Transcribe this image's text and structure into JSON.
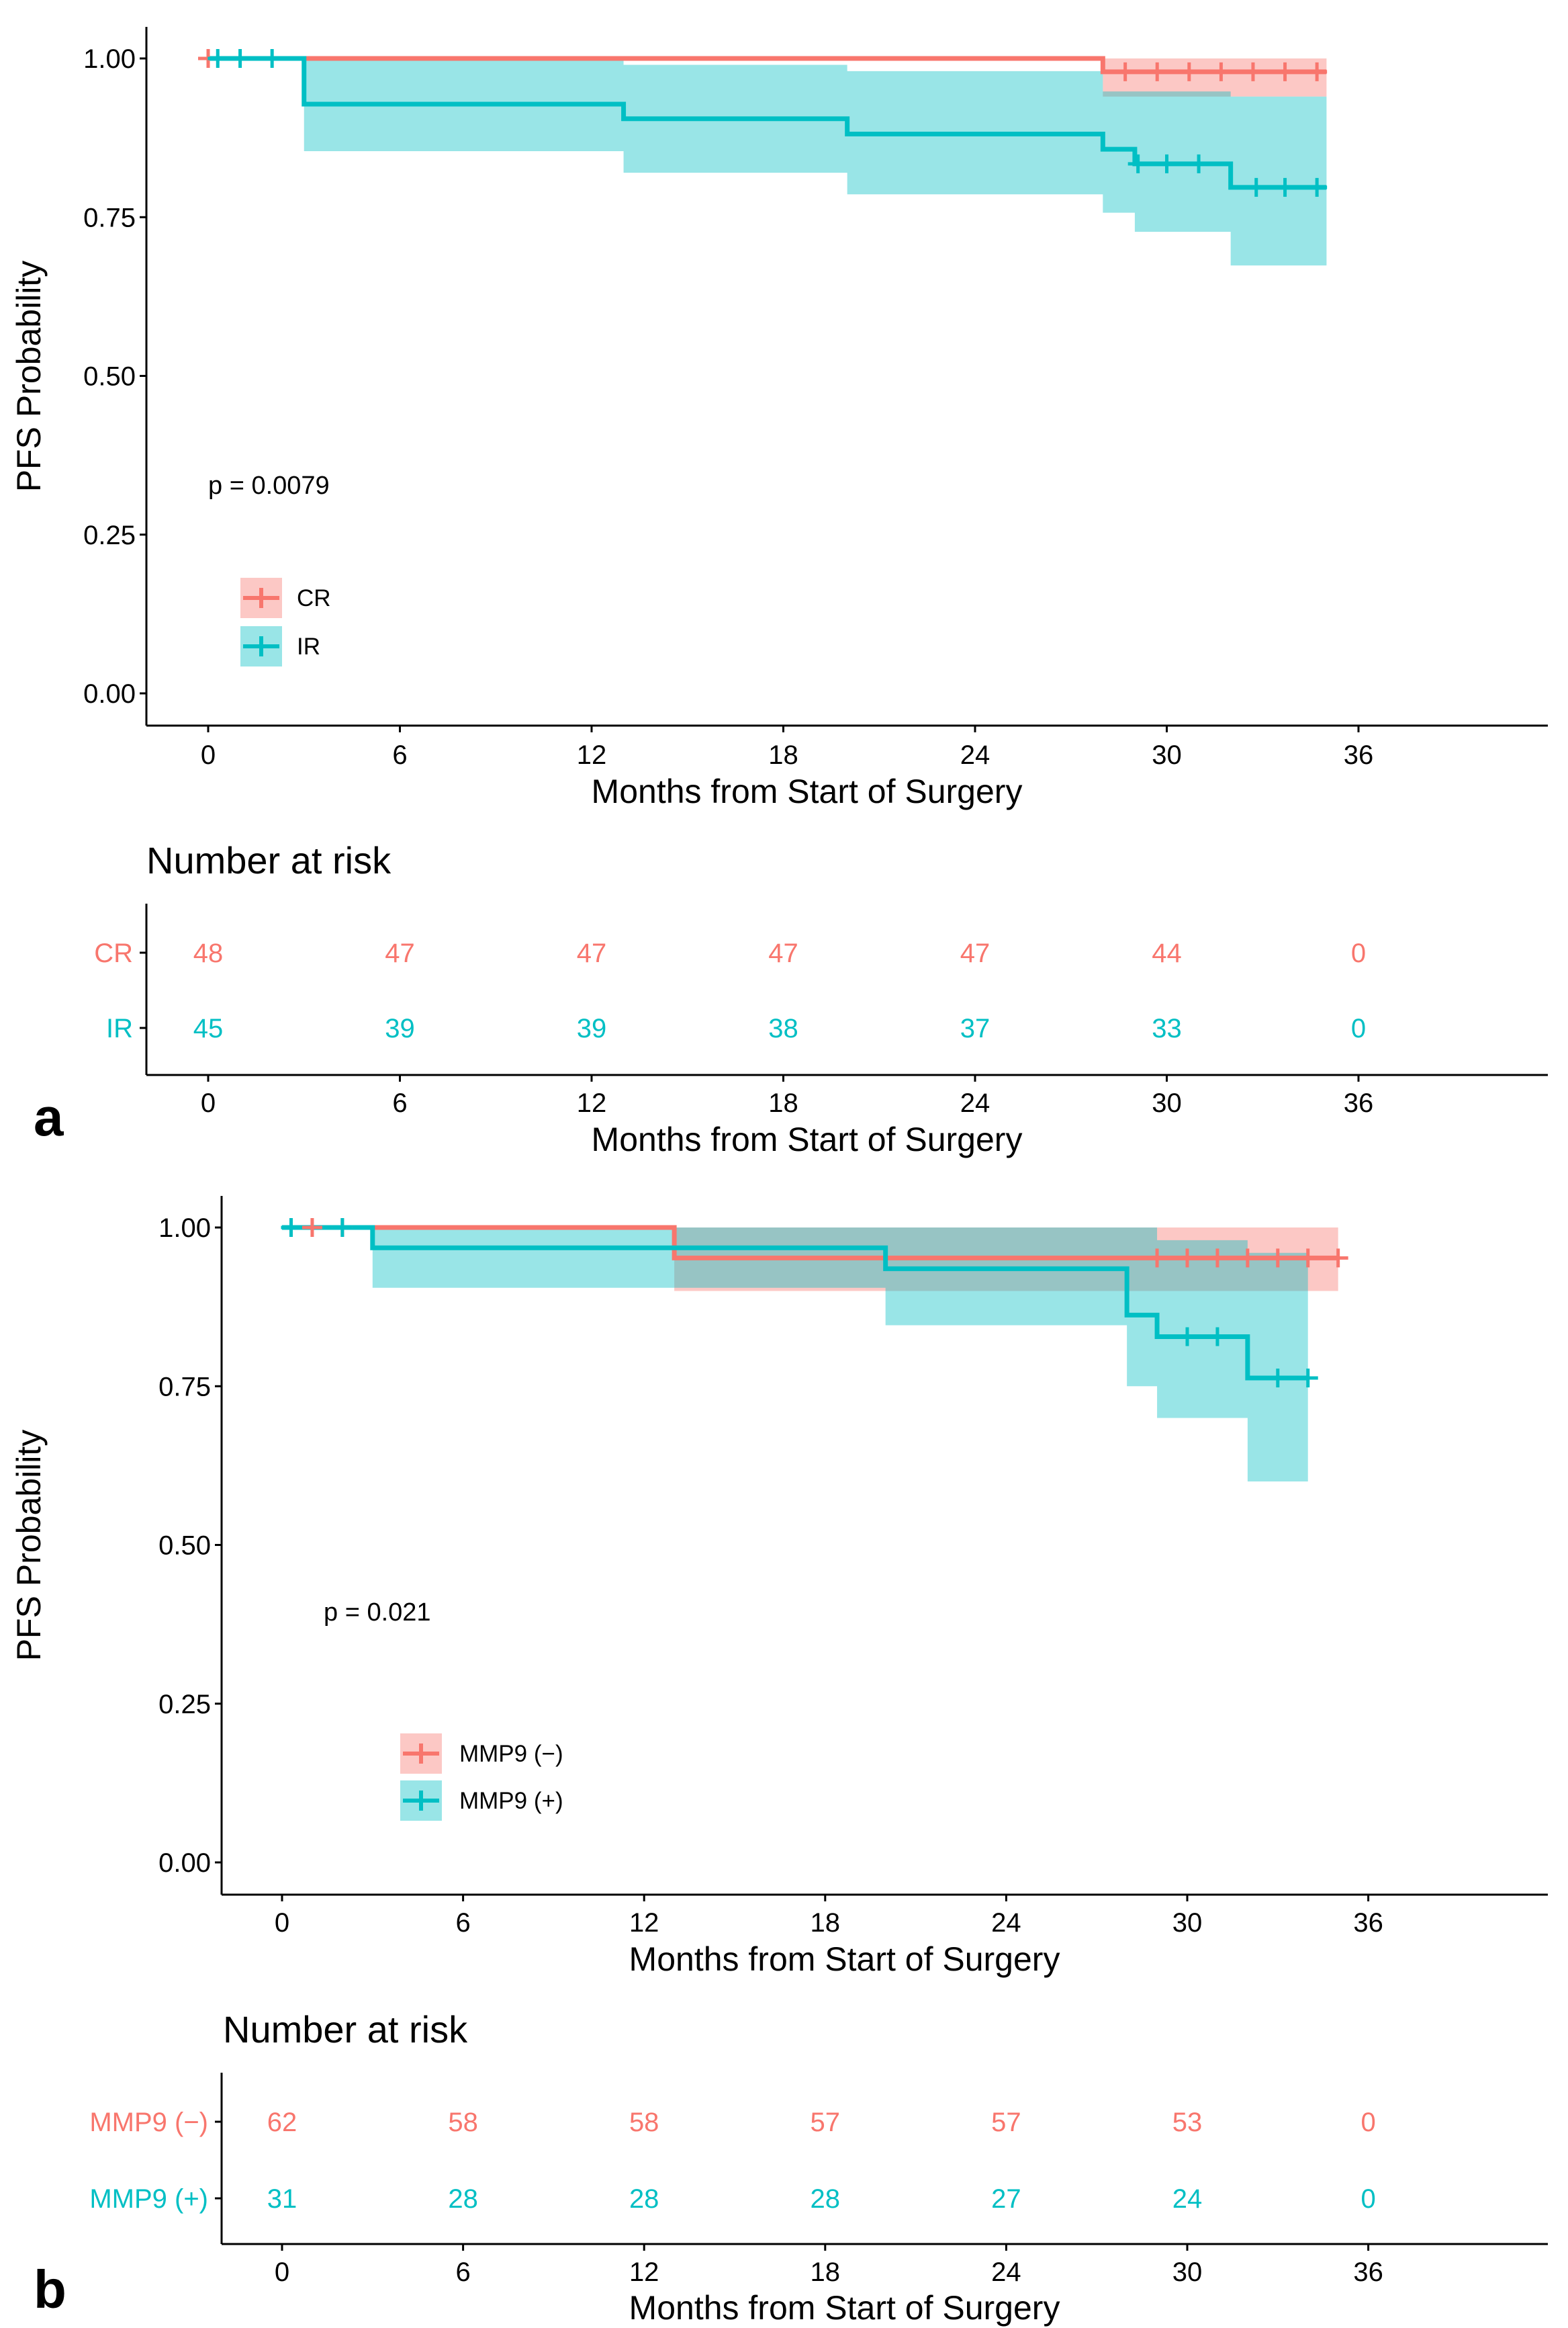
{
  "colors": {
    "g0": "#f8766d",
    "g1": "#00bfc4"
  },
  "chart_data": [
    {
      "type": "line",
      "subtype": "kaplan-meier",
      "panel_label": "a",
      "ylabel": "PFS Probability",
      "xlabel": "Months from Start of Surgery",
      "xlim": [
        -2,
        42
      ],
      "ylim": [
        0,
        1.05
      ],
      "xticks": [
        0,
        6,
        12,
        18,
        24,
        30,
        36
      ],
      "yticks": [
        0,
        0.25,
        0.5,
        0.75,
        1.0
      ],
      "ytick_labels": [
        "0.00",
        "0.25",
        "0.50",
        "0.75",
        "1.00"
      ],
      "p_value": "p = 0.0079",
      "legend_position": "bottom-left",
      "series": [
        {
          "name": "CR",
          "steps": [
            [
              0,
              1.0
            ],
            [
              28,
              0.979
            ],
            [
              35,
              0.979
            ]
          ],
          "ci": [
            [
              0,
              1.0,
              1.0
            ],
            [
              28,
              0.94,
              1.0
            ],
            [
              35,
              0.94,
              1.0
            ]
          ],
          "censored": [
            [
              0,
              1.0
            ],
            [
              28.7,
              0.979
            ],
            [
              29.7,
              0.979
            ],
            [
              30.7,
              0.979
            ],
            [
              31.7,
              0.979
            ],
            [
              32.7,
              0.979
            ],
            [
              33.7,
              0.979
            ],
            [
              34.7,
              0.979
            ]
          ]
        },
        {
          "name": "IR",
          "steps": [
            [
              0,
              1.0
            ],
            [
              3,
              0.928
            ],
            [
              13,
              0.905
            ],
            [
              20,
              0.881
            ],
            [
              28,
              0.857
            ],
            [
              29,
              0.834
            ],
            [
              32,
              0.797
            ],
            [
              35,
              0.797
            ]
          ],
          "ci": [
            [
              0,
              1.0,
              1.0
            ],
            [
              3,
              0.854,
              1.0
            ],
            [
              13,
              0.82,
              0.99
            ],
            [
              20,
              0.786,
              0.98
            ],
            [
              28,
              0.757,
              0.948
            ],
            [
              29,
              0.727,
              0.948
            ],
            [
              32,
              0.674,
              0.94
            ],
            [
              35,
              0.674,
              0.94
            ]
          ],
          "censored": [
            [
              0.3,
              1.0
            ],
            [
              1.0,
              1.0
            ],
            [
              2.0,
              1.0
            ],
            [
              29.1,
              0.834
            ],
            [
              30.0,
              0.834
            ],
            [
              31.0,
              0.834
            ],
            [
              32.8,
              0.797
            ],
            [
              33.7,
              0.797
            ],
            [
              34.7,
              0.797
            ]
          ]
        }
      ],
      "risk_table": {
        "title": "Number at risk",
        "times": [
          0,
          6,
          12,
          18,
          24,
          30,
          36
        ],
        "rows": [
          {
            "label": "CR",
            "values": [
              "48",
              "47",
              "47",
              "47",
              "47",
              "44",
              "0"
            ]
          },
          {
            "label": "IR",
            "values": [
              "45",
              "39",
              "39",
              "38",
              "37",
              "33",
              "0"
            ]
          }
        ],
        "xlabel": "Months from Start of Surgery"
      }
    },
    {
      "type": "line",
      "subtype": "kaplan-meier",
      "panel_label": "b",
      "ylabel": "PFS Probability",
      "xlabel": "Months from Start of Surgery",
      "xlim": [
        -2,
        42
      ],
      "ylim": [
        0,
        1.05
      ],
      "xticks": [
        0,
        6,
        12,
        18,
        24,
        30,
        36
      ],
      "yticks": [
        0,
        0.25,
        0.5,
        0.75,
        1.0
      ],
      "ytick_labels": [
        "0.00",
        "0.25",
        "0.50",
        "0.75",
        "1.00"
      ],
      "p_value": "p = 0.021",
      "legend_position": "bottom-left",
      "series": [
        {
          "name": "MMP9 (−)",
          "steps": [
            [
              0,
              1.0
            ],
            [
              13,
              0.952
            ],
            [
              35,
              0.952
            ]
          ],
          "ci": [
            [
              0,
              1.0,
              1.0
            ],
            [
              13,
              0.9,
              1.0
            ],
            [
              35,
              0.9,
              1.0
            ]
          ],
          "censored": [
            [
              0.3,
              1.0
            ],
            [
              1.0,
              1.0
            ],
            [
              2.0,
              1.0
            ],
            [
              29,
              0.952
            ],
            [
              30,
              0.952
            ],
            [
              31,
              0.952
            ],
            [
              32,
              0.952
            ],
            [
              33,
              0.952
            ],
            [
              34,
              0.952
            ],
            [
              35,
              0.952
            ]
          ]
        },
        {
          "name": "MMP9 (+)",
          "steps": [
            [
              0,
              1.0
            ],
            [
              3,
              0.968
            ],
            [
              20,
              0.935
            ],
            [
              28,
              0.862
            ],
            [
              29,
              0.828
            ],
            [
              32,
              0.763
            ],
            [
              34,
              0.763
            ]
          ],
          "ci": [
            [
              0,
              1.0,
              1.0
            ],
            [
              3,
              0.905,
              1.0
            ],
            [
              20,
              0.846,
              1.0
            ],
            [
              28,
              0.75,
              1.0
            ],
            [
              29,
              0.7,
              0.98
            ],
            [
              32,
              0.6,
              0.96
            ],
            [
              34,
              0.6,
              0.96
            ]
          ],
          "censored": [
            [
              0.3,
              1.0
            ],
            [
              2.0,
              1.0
            ],
            [
              30,
              0.828
            ],
            [
              31,
              0.828
            ],
            [
              33,
              0.763
            ],
            [
              34,
              0.763
            ]
          ]
        }
      ],
      "risk_table": {
        "title": "Number at risk",
        "times": [
          0,
          6,
          12,
          18,
          24,
          30,
          36
        ],
        "rows": [
          {
            "label": "MMP9 (−)",
            "values": [
              "62",
              "58",
              "58",
              "57",
              "57",
              "53",
              "0"
            ]
          },
          {
            "label": "MMP9 (+)",
            "values": [
              "31",
              "28",
              "28",
              "28",
              "27",
              "24",
              "0"
            ]
          }
        ],
        "xlabel": "Months from Start of Surgery"
      }
    }
  ]
}
